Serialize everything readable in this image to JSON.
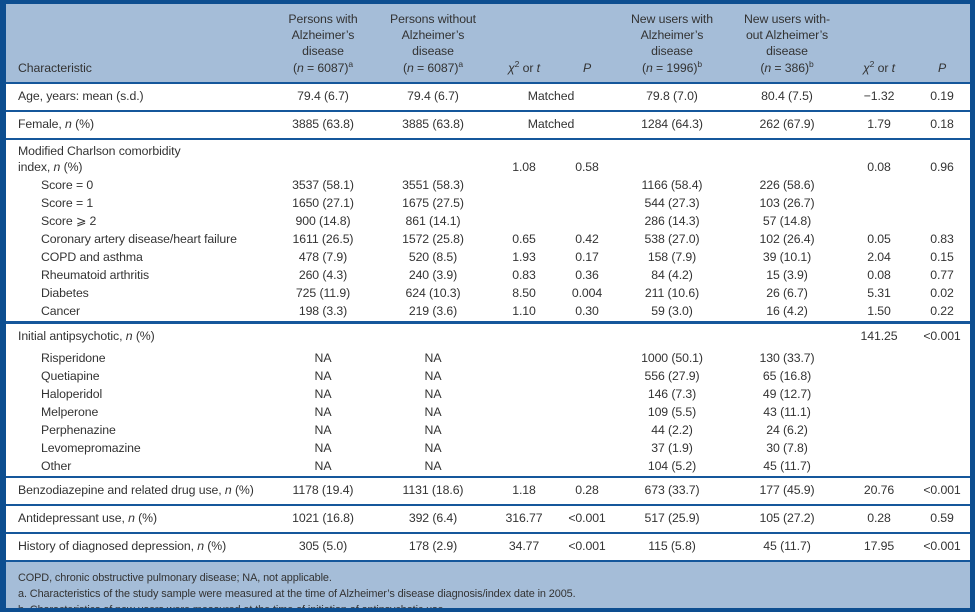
{
  "colors": {
    "band_background": "#a5bdd8",
    "rule_blue": "#15579b",
    "outer_border": "#0d4e90",
    "text": "#333333"
  },
  "table": {
    "matched_label": "Matched",
    "columns": [
      {
        "id": "characteristic",
        "lines": [
          "Characteristic"
        ]
      },
      {
        "id": "persons-with-ad",
        "lines": [
          "Persons with",
          "Alzheimer’s",
          "disease",
          "(*n* = 6087)^a^"
        ]
      },
      {
        "id": "persons-without-ad",
        "lines": [
          "Persons without",
          "Alzheimer’s",
          "disease",
          "(*n* = 6087)^a^"
        ]
      },
      {
        "id": "chi2-or-t-1",
        "lines": [
          "*χ*^2^ or *t*"
        ]
      },
      {
        "id": "p-1",
        "lines": [
          "*P*"
        ]
      },
      {
        "id": "new-users-with-ad",
        "lines": [
          "New users with",
          "Alzheimer’s",
          "disease",
          "(*n* = 1996)^b^"
        ]
      },
      {
        "id": "new-users-without-ad",
        "lines": [
          "New users with-",
          "out Alzheimer’s",
          "disease",
          "(*n* = 386)^b^"
        ]
      },
      {
        "id": "chi2-or-t-2",
        "lines": [
          "*χ*^2^ or *t*"
        ]
      },
      {
        "id": "p-2",
        "lines": [
          "*P*"
        ]
      }
    ],
    "rows": [
      {
        "label": "Age, years: mean (s.d.)",
        "style": "main",
        "rule": "none",
        "matched": true,
        "indent": false,
        "cells": [
          "79.4 (6.7)",
          "79.4 (6.7)",
          "79.8 (7.0)",
          "80.4 (7.5)",
          "−1.32",
          "0.19"
        ]
      },
      {
        "label": "Female, *n* (%)",
        "style": "main",
        "rule": "thin",
        "matched": true,
        "indent": false,
        "cells": [
          "3885 (63.8)",
          "3885 (63.8)",
          "1284 (64.3)",
          "262 (67.9)",
          "1.79",
          "0.18"
        ]
      },
      {
        "label": "Modified Charlson comorbidity\nindex, *n* (%)",
        "style": "group2",
        "rule": "thin",
        "matched": false,
        "indent": false,
        "cells": [
          "",
          "",
          "1.08",
          "0.58",
          "",
          "",
          "0.08",
          "0.96"
        ]
      },
      {
        "label": "Score = 0",
        "style": "sub",
        "rule": "none",
        "matched": false,
        "indent": true,
        "cells": [
          "3537 (58.1)",
          "3551 (58.3)",
          "",
          "",
          "1166 (58.4)",
          "226 (58.6)",
          "",
          ""
        ]
      },
      {
        "label": "Score = 1",
        "style": "sub",
        "rule": "none",
        "matched": false,
        "indent": true,
        "cells": [
          "1650 (27.1)",
          "1675 (27.5)",
          "",
          "",
          "544 (27.3)",
          "103 (26.7)",
          "",
          ""
        ]
      },
      {
        "label": "Score ⩾ 2",
        "style": "sub",
        "rule": "none",
        "matched": false,
        "indent": true,
        "cells": [
          "900 (14.8)",
          "861 (14.1)",
          "",
          "",
          "286 (14.3)",
          "57 (14.8)",
          "",
          ""
        ]
      },
      {
        "label": "Coronary artery disease/heart failure",
        "style": "sub",
        "rule": "none",
        "matched": false,
        "indent": true,
        "cells": [
          "1611 (26.5)",
          "1572 (25.8)",
          "0.65",
          "0.42",
          "538 (27.0)",
          "102 (26.4)",
          "0.05",
          "0.83"
        ]
      },
      {
        "label": "COPD and asthma",
        "style": "sub",
        "rule": "none",
        "matched": false,
        "indent": true,
        "cells": [
          "478 (7.9)",
          "520 (8.5)",
          "1.93",
          "0.17",
          "158 (7.9)",
          "39 (10.1)",
          "2.04",
          "0.15"
        ]
      },
      {
        "label": "Rheumatoid arthritis",
        "style": "sub",
        "rule": "none",
        "matched": false,
        "indent": true,
        "cells": [
          "260 (4.3)",
          "240 (3.9)",
          "0.83",
          "0.36",
          "84 (4.2)",
          "15 (3.9)",
          "0.08",
          "0.77"
        ]
      },
      {
        "label": "Diabetes",
        "style": "sub",
        "rule": "none",
        "matched": false,
        "indent": true,
        "cells": [
          "725 (11.9)",
          "624 (10.3)",
          "8.50",
          "0.004",
          "211 (10.6)",
          "26 (6.7)",
          "5.31",
          "0.02"
        ]
      },
      {
        "label": "Cancer",
        "style": "sub",
        "rule": "none",
        "matched": false,
        "indent": true,
        "cells": [
          "198 (3.3)",
          "219 (3.6)",
          "1.10",
          "0.30",
          "59 (3.0)",
          "16 (4.2)",
          "1.50",
          "0.22"
        ]
      },
      {
        "label": "Initial antipsychotic, *n* (%)",
        "style": "main",
        "rule": "thick",
        "matched": false,
        "indent": false,
        "cells": [
          "",
          "",
          "",
          "",
          "",
          "",
          "141.25",
          "<0.001"
        ]
      },
      {
        "label": "Risperidone",
        "style": "sub",
        "rule": "none",
        "matched": false,
        "indent": true,
        "cells": [
          "NA",
          "NA",
          "",
          "",
          "1000 (50.1)",
          "130 (33.7)",
          "",
          ""
        ]
      },
      {
        "label": "Quetiapine",
        "style": "sub",
        "rule": "none",
        "matched": false,
        "indent": true,
        "cells": [
          "NA",
          "NA",
          "",
          "",
          "556 (27.9)",
          "65 (16.8)",
          "",
          ""
        ]
      },
      {
        "label": "Haloperidol",
        "style": "sub",
        "rule": "none",
        "matched": false,
        "indent": true,
        "cells": [
          "NA",
          "NA",
          "",
          "",
          "146 (7.3)",
          "49 (12.7)",
          "",
          ""
        ]
      },
      {
        "label": "Melperone",
        "style": "sub",
        "rule": "none",
        "matched": false,
        "indent": true,
        "cells": [
          "NA",
          "NA",
          "",
          "",
          "109 (5.5)",
          "43 (11.1)",
          "",
          ""
        ]
      },
      {
        "label": "Perphenazine",
        "style": "sub",
        "rule": "none",
        "matched": false,
        "indent": true,
        "cells": [
          "NA",
          "NA",
          "",
          "",
          "44 (2.2)",
          "24 (6.2)",
          "",
          ""
        ]
      },
      {
        "label": "Levomepromazine",
        "style": "sub",
        "rule": "none",
        "matched": false,
        "indent": true,
        "cells": [
          "NA",
          "NA",
          "",
          "",
          "37 (1.9)",
          "30 (7.8)",
          "",
          ""
        ]
      },
      {
        "label": "Other",
        "style": "sub",
        "rule": "none",
        "matched": false,
        "indent": true,
        "cells": [
          "NA",
          "NA",
          "",
          "",
          "104 (5.2)",
          "45 (11.7)",
          "",
          ""
        ]
      },
      {
        "label": "Benzodiazepine and related drug use, *n* (%)",
        "style": "main",
        "rule": "thin",
        "matched": false,
        "indent": false,
        "cells": [
          "1178 (19.4)",
          "1131 (18.6)",
          "1.18",
          "0.28",
          "673 (33.7)",
          "177 (45.9)",
          "20.76",
          "<0.001"
        ]
      },
      {
        "label": "Antidepressant use, *n* (%)",
        "style": "main",
        "rule": "thin",
        "matched": false,
        "indent": false,
        "cells": [
          "1021 (16.8)",
          "392 (6.4)",
          "316.77",
          "<0.001",
          "517 (25.9)",
          "105 (27.2)",
          "0.28",
          "0.59"
        ]
      },
      {
        "label": "History of diagnosed depression, *n* (%)",
        "style": "main",
        "rule": "thin",
        "matched": false,
        "indent": false,
        "cells": [
          "305 (5.0)",
          "178 (2.9)",
          "34.77",
          "<0.001",
          "115 (5.8)",
          "45 (11.7)",
          "17.95",
          "<0.001"
        ]
      }
    ]
  },
  "footnotes": [
    "COPD, chronic obstructive pulmonary disease; NA, not applicable.",
    "a. Characteristics of the study sample were measured at the time of Alzheimer’s disease diagnosis/index date in 2005.",
    "b. Characteristics of new users were measured at the time of initiation of antipsychotic use."
  ]
}
